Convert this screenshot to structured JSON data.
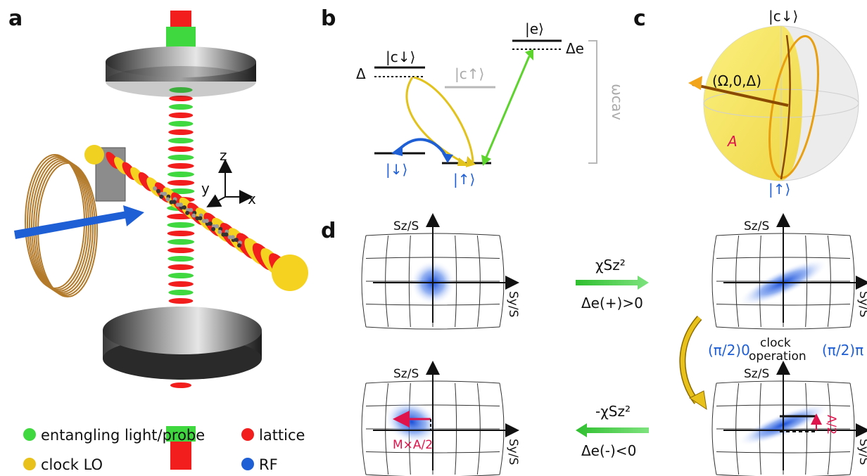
{
  "panels": {
    "a": {
      "letter": "a",
      "axes": {
        "z": "z",
        "y": "y",
        "x": "x"
      },
      "legend": [
        {
          "label": "entangling light/probe",
          "color": "#3fd83f"
        },
        {
          "label": "lattice",
          "color": "#f21d1d"
        },
        {
          "label": "clock LO",
          "color": "#e8c21a"
        },
        {
          "label": "RF",
          "color": "#1f5fd6"
        }
      ]
    },
    "b": {
      "letter": "b",
      "levels": {
        "e": "|e⟩",
        "c_down": "|c↓⟩",
        "c_up": "|c↑⟩",
        "down": "|↓⟩",
        "up": "|↑⟩"
      },
      "delta": "Δ",
      "delta_e": "Δe",
      "omega_cav": "ωcav"
    },
    "c": {
      "letter": "c",
      "top_label": "|c↓⟩",
      "bottom_label": "|↑⟩",
      "vector_label": "(Ω,0,Δ)",
      "area_label": "A"
    },
    "d": {
      "letter": "d",
      "axis_vertical": "Sz/S",
      "axis_horizontal": "Sy/S",
      "arrow_top_label": "χSz²",
      "arrow_top_condition": "Δe(+)>0",
      "arrow_bottom_label": "-χSz²",
      "arrow_bottom_condition": "Δe(-)<0",
      "sequence_left": "(π/2)0",
      "sequence_clock_top": "clock",
      "sequence_clock_bottom": "operation",
      "sequence_right": "(π/2)π",
      "shift_label": "M×A/2",
      "offset_label": "A/2"
    }
  }
}
